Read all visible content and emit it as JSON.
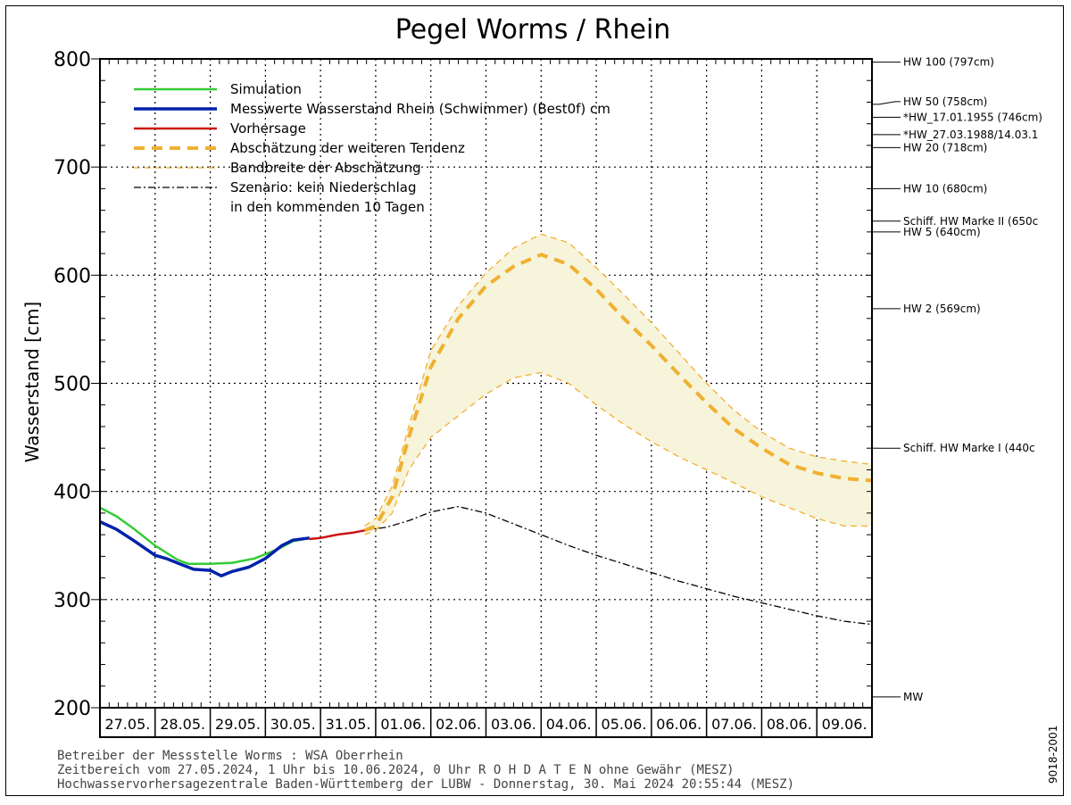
{
  "chart_data": {
    "type": "line",
    "title": "Pegel Worms / Rhein",
    "ylabel": "Wasserstand [cm]",
    "ylim": [
      200,
      800
    ],
    "yticks": [
      200,
      300,
      400,
      500,
      600,
      700,
      800
    ],
    "xlim": [
      0,
      14
    ],
    "xticks": [
      "27.05.",
      "28.05.",
      "29.05.",
      "30.05.",
      "31.05.",
      "01.06.",
      "02.06.",
      "03.06.",
      "04.06.",
      "05.06.",
      "06.06.",
      "07.06.",
      "08.06.",
      "09.06."
    ],
    "grid": true,
    "legend_position": "top-left",
    "series": [
      {
        "name": "Simulation",
        "color": "#33cc33",
        "style": "solid",
        "x": [
          0,
          0.3,
          0.6,
          1.0,
          1.4,
          1.6,
          2.0,
          2.4,
          2.8,
          3.2,
          3.5,
          3.8
        ],
        "y": [
          385,
          377,
          366,
          350,
          337,
          333,
          333,
          334,
          338,
          346,
          354,
          357
        ]
      },
      {
        "name": "Messwerte Wasserstand Rhein (Schwimmer) (Best0f)  cm",
        "color": "#0022aa",
        "style": "solid",
        "x": [
          0,
          0.3,
          0.6,
          1.0,
          1.2,
          1.5,
          1.7,
          2.0,
          2.2,
          2.4,
          2.7,
          3.0,
          3.3,
          3.5,
          3.8
        ],
        "y": [
          372,
          365,
          355,
          341,
          338,
          332,
          328,
          327,
          322,
          326,
          330,
          338,
          350,
          355,
          357
        ]
      },
      {
        "name": "Vorhersage",
        "color": "#cc1111",
        "style": "solid",
        "x": [
          3.8,
          4.0,
          4.3,
          4.6,
          4.8
        ],
        "y": [
          356,
          357,
          360,
          362,
          364
        ]
      },
      {
        "name": "Abschätzung der weiteren Tendenz",
        "color": "#f0b030",
        "style": "thick-dash",
        "x": [
          4.8,
          5.0,
          5.3,
          5.6,
          6.0,
          6.5,
          7.0,
          7.5,
          8.0,
          8.5,
          9.0,
          9.5,
          10.0,
          10.5,
          11.0,
          11.5,
          12.0,
          12.5,
          13.0,
          13.5,
          14.0
        ],
        "y": [
          364,
          368,
          395,
          450,
          515,
          560,
          590,
          608,
          619,
          610,
          587,
          560,
          535,
          508,
          482,
          458,
          440,
          425,
          417,
          412,
          410
        ]
      },
      {
        "name": "Bandbreite der Abschätzung",
        "color": "#f0b030",
        "style": "thin-dash",
        "x": [
          4.8,
          5.0,
          5.3,
          5.6,
          6.0,
          6.5,
          7.0,
          7.5,
          8.0,
          8.5,
          9.0,
          9.5,
          10.0,
          10.5,
          11.0,
          11.5,
          12.0,
          12.5,
          13.0,
          13.5,
          14.0
        ],
        "upper": [
          368,
          375,
          405,
          460,
          530,
          572,
          602,
          625,
          638,
          630,
          607,
          582,
          556,
          528,
          500,
          475,
          455,
          440,
          432,
          428,
          425
        ],
        "lower": [
          360,
          364,
          380,
          420,
          450,
          470,
          490,
          505,
          510,
          500,
          480,
          462,
          446,
          432,
          420,
          408,
          395,
          385,
          375,
          368,
          368
        ]
      },
      {
        "name": "Szenario: kein Niederschlag",
        "name_line2": "in den kommenden 10 Tagen",
        "color": "#000000",
        "style": "dash-dot",
        "x": [
          4.8,
          5.2,
          5.6,
          6.0,
          6.5,
          7.0,
          7.5,
          8.0,
          8.5,
          9.0,
          9.5,
          10.0,
          10.5,
          11.0,
          11.5,
          12.0,
          12.5,
          13.0,
          13.5,
          14.0
        ],
        "y": [
          364,
          367,
          373,
          381,
          386,
          380,
          370,
          360,
          350,
          341,
          333,
          325,
          317,
          310,
          303,
          297,
          291,
          285,
          280,
          277
        ]
      }
    ],
    "reference_lines": [
      {
        "label": "HW 100 (797cm)",
        "value": 797
      },
      {
        "label": "HW 50 (758cm)",
        "value": 758
      },
      {
        "label": "*HW_17.01.1955 (746cm)",
        "value": 746
      },
      {
        "label": "*HW_27.03.1988/14.03.1",
        "value": 730
      },
      {
        "label": "HW 20 (718cm)",
        "value": 718
      },
      {
        "label": "HW 10 (680cm)",
        "value": 680
      },
      {
        "label": "Schiff. HW Marke II (650c",
        "value": 650
      },
      {
        "label": "HW 5 (640cm)",
        "value": 640
      },
      {
        "label": "HW 2 (569cm)",
        "value": 569
      },
      {
        "label": "Schiff. HW Marke I (440c",
        "value": 440
      },
      {
        "label": "MW",
        "value": 210
      }
    ]
  },
  "footer": {
    "line1": "Betreiber der Messstelle Worms : WSA Oberrhein",
    "line2": "Zeitbereich vom 27.05.2024, 1 Uhr bis 10.06.2024, 0 Uhr   R O H D A T E N ohne Gewähr (MESZ)",
    "line3": "Hochwasservorhersagezentrale Baden-Württemberg der LUBW - Donnerstag, 30. Mai 2024 20:55:44 (MESZ)"
  },
  "side_code": "9018-2001",
  "colors": {
    "band_fill": "#f7f4dc"
  }
}
